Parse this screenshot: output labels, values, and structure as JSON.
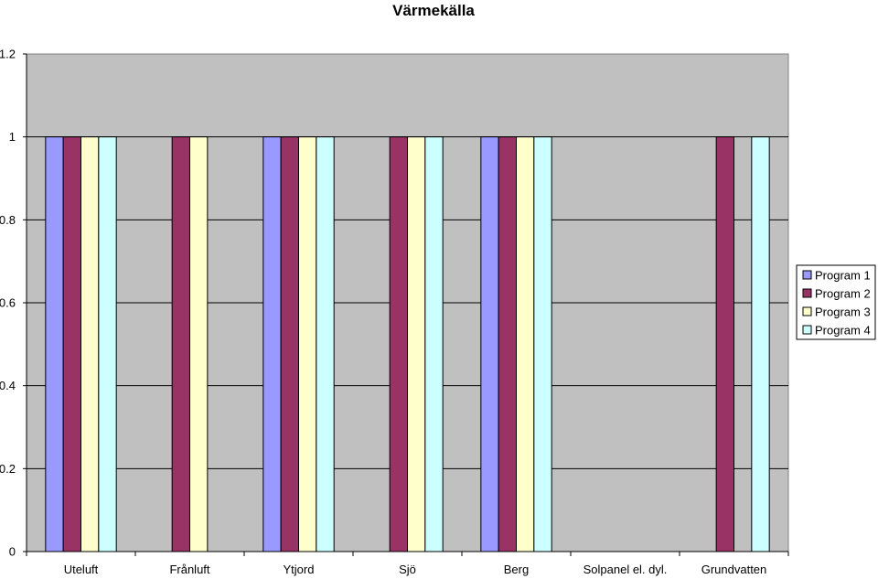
{
  "chart_data": {
    "type": "bar",
    "title": "Värmekälla",
    "xlabel": "",
    "ylabel": "",
    "ylim": [
      0,
      1.2
    ],
    "yticks": [
      "0",
      "0.2",
      "0.4",
      "0.6",
      "0.8",
      "1",
      "1.2"
    ],
    "categories": [
      "Uteluft",
      "Frånluft",
      "Ytjord",
      "Sjö",
      "Berg",
      "Solpanel el. dyl.",
      "Grundvatten"
    ],
    "series": [
      {
        "name": "Program 1",
        "color": "#9999ff",
        "values": [
          1,
          0,
          1,
          0,
          1,
          0,
          0
        ]
      },
      {
        "name": "Program 2",
        "color": "#993366",
        "values": [
          1,
          1,
          1,
          1,
          1,
          0,
          1
        ]
      },
      {
        "name": "Program 3",
        "color": "#ffffcc",
        "values": [
          1,
          1,
          1,
          1,
          1,
          0,
          0
        ]
      },
      {
        "name": "Program 4",
        "color": "#ccffff",
        "values": [
          1,
          0,
          1,
          1,
          1,
          0,
          1
        ]
      }
    ],
    "grid": true,
    "legend_position": "right",
    "plot_background": "#c0c0c0"
  }
}
